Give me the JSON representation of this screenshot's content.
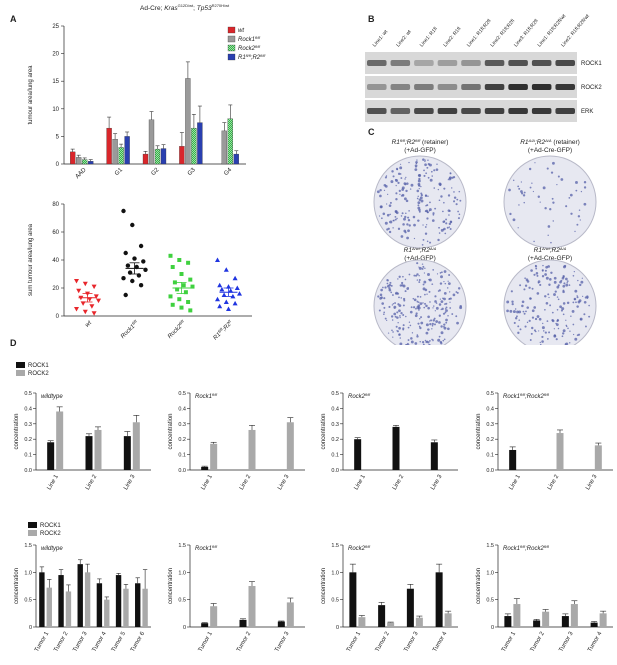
{
  "figure": {
    "panel_letters": [
      "A",
      "B",
      "C",
      "D"
    ],
    "header_title_parts": {
      "prefix": "Ad-Cre; ",
      "kras": "Kras",
      "kras_sup": "G12D/wt",
      "sep": "; ",
      "tp53": "Tp53",
      "tp53_sup": "R270H/wt"
    }
  },
  "chart_data": [
    {
      "id": "A-top",
      "type": "bar",
      "title": "",
      "ylabel": "tumour area/lung area",
      "xlabel": "",
      "ylim": [
        0,
        25
      ],
      "yticks": [
        0,
        5,
        10,
        15,
        20,
        25
      ],
      "categories": [
        "AAD",
        "G1",
        "G2",
        "G3",
        "G4"
      ],
      "legend_position": "top-right",
      "series": [
        {
          "name": "wt",
          "color": "#d9262b",
          "values": [
            2.2,
            6.5,
            1.8,
            3.2,
            0
          ],
          "errors": [
            0.5,
            2.0,
            0.5,
            2.5,
            0
          ]
        },
        {
          "name": "Rock1fl/fl",
          "color": "#9a9a9a",
          "values": [
            1.2,
            4.5,
            8.0,
            15.5,
            6.0
          ],
          "errors": [
            0.4,
            1.0,
            1.5,
            3.0,
            1.5
          ]
        },
        {
          "name": "Rock2fl/fl",
          "color": "#33b34a",
          "values": [
            0.8,
            3.0,
            2.7,
            6.5,
            8.2
          ],
          "errors": [
            0.3,
            0.6,
            0.6,
            2.5,
            2.5
          ]
        },
        {
          "name": "R1fl/fl;R2fl/fl",
          "color": "#2a3fb0",
          "values": [
            0.5,
            5.0,
            2.8,
            7.5,
            1.8
          ],
          "errors": [
            0.3,
            0.8,
            0.7,
            3.0,
            0.6
          ]
        }
      ],
      "legend_labels": [
        {
          "main": "wt",
          "sup": ""
        },
        {
          "main": "Rock1",
          "sup": "fl/fl"
        },
        {
          "main": "Rock2",
          "sup": "fl/fl"
        },
        {
          "main": "R1",
          "sup": "fl/fl",
          "main2": ";R2",
          "sup2": "fl/fl"
        }
      ]
    },
    {
      "id": "A-bottom",
      "type": "scatter",
      "ylabel": "sum tumour area/lung area",
      "ylim": [
        0,
        80
      ],
      "yticks": [
        0,
        20,
        40,
        60,
        80
      ],
      "categories": [
        "wt",
        "Rock1fl/fl",
        "Rock2fl/fl",
        "R1fl/fl;R2fl/fl"
      ],
      "x_labels": [
        {
          "main": "wt",
          "sup": ""
        },
        {
          "main": "Rock1",
          "sup": "fl/fl"
        },
        {
          "main": "Rock2",
          "sup": "fl/fl"
        },
        {
          "main": "R1",
          "sup": "fl/fl",
          "main2": ";R2",
          "sup2": "fl"
        }
      ],
      "series": [
        {
          "name": "wt",
          "color": "#e8262b",
          "marker": "triangle-down",
          "mean": 13,
          "sem": 3,
          "values": [
            25,
            23,
            21,
            18,
            16,
            14,
            13,
            12,
            11,
            9,
            7,
            5,
            3,
            2
          ]
        },
        {
          "name": "Rock1fl/fl",
          "color": "#111111",
          "marker": "circle",
          "mean": 34,
          "sem": 4,
          "values": [
            75,
            65,
            50,
            45,
            41,
            39,
            36,
            35,
            33,
            31,
            29,
            27,
            25,
            22,
            15
          ]
        },
        {
          "name": "Rock2fl/fl",
          "color": "#3fd13f",
          "marker": "square",
          "mean": 20,
          "sem": 4,
          "values": [
            43,
            40,
            38,
            35,
            30,
            26,
            24,
            22,
            21,
            19,
            17,
            14,
            12,
            10,
            8,
            6,
            4
          ]
        },
        {
          "name": "R1fl/fl;R2fl/fl",
          "color": "#2035e0",
          "marker": "triangle-up",
          "mean": 17,
          "sem": 3,
          "values": [
            40,
            33,
            27,
            22,
            21,
            20,
            19,
            18,
            16,
            15,
            14,
            12,
            10,
            9,
            7,
            5
          ]
        }
      ]
    },
    {
      "id": "D-row1",
      "type": "bar",
      "ylabel": "concentration",
      "ylim": [
        0,
        0.5
      ],
      "yticks": [
        "0.0",
        "0.1",
        "0.2",
        "0.3",
        "0.4",
        "0.5"
      ],
      "legend": [
        {
          "name": "ROCK1",
          "color": "#111111"
        },
        {
          "name": "ROCK2",
          "color": "#a9a9a9"
        }
      ],
      "panels": [
        {
          "title_main": "wildtype",
          "title_sup": "",
          "categories": [
            "Line 1",
            "Line 2",
            "Line 3"
          ],
          "ROCK1": [
            0.18,
            0.22,
            0.22
          ],
          "ROCK1_err": [
            0.01,
            0.015,
            0.03
          ],
          "ROCK2": [
            0.38,
            0.26,
            0.31
          ],
          "ROCK2_err": [
            0.03,
            0.02,
            0.045
          ]
        },
        {
          "title_main": "Rock1",
          "title_sup": "fl/fl",
          "categories": [
            "Line 1",
            "Line 2",
            "Line 3"
          ],
          "ROCK1": [
            0.02,
            0,
            0
          ],
          "ROCK1_err": [
            0.005,
            0,
            0
          ],
          "ROCK2": [
            0.17,
            0.26,
            0.31
          ],
          "ROCK2_err": [
            0.01,
            0.03,
            0.03
          ]
        },
        {
          "title_main": "Rock2",
          "title_sup": "fl/fl",
          "categories": [
            "Line 1",
            "Line 2",
            "Line 3"
          ],
          "ROCK1": [
            0.2,
            0.28,
            0.18
          ],
          "ROCK1_err": [
            0.01,
            0.01,
            0.015
          ],
          "ROCK2": [
            0,
            0,
            0
          ],
          "ROCK2_err": [
            0,
            0,
            0
          ]
        },
        {
          "title_main": "Rock1",
          "title_sup": "fl/fl",
          "title_main2": ";Rock2",
          "title_sup2": "fl/fl",
          "categories": [
            "Line 1",
            "Line 2",
            "Line 3"
          ],
          "ROCK1": [
            0.13,
            0,
            0
          ],
          "ROCK1_err": [
            0.02,
            0,
            0
          ],
          "ROCK2": [
            0,
            0.24,
            0.16
          ],
          "ROCK2_err": [
            0,
            0.02,
            0.015
          ]
        }
      ]
    },
    {
      "id": "D-row2",
      "type": "bar",
      "ylabel": "concentration",
      "ylim": [
        0,
        1.5
      ],
      "yticks": [
        "0",
        "0.5",
        "1.0",
        "1.5"
      ],
      "legend": [
        {
          "name": "ROCK1",
          "color": "#111111"
        },
        {
          "name": "ROCK2",
          "color": "#a9a9a9"
        }
      ],
      "panels": [
        {
          "title_main": "wildtype",
          "title_sup": "",
          "categories": [
            "Tumor 1",
            "Tumor 2",
            "Tumor 3",
            "Tumor 4",
            "Tumor 5",
            "Tumor 6"
          ],
          "ROCK1": [
            1.0,
            0.95,
            1.15,
            0.8,
            0.95,
            0.8
          ],
          "ROCK1_err": [
            0.1,
            0.1,
            0.08,
            0.08,
            0.03,
            0.1
          ],
          "ROCK2": [
            0.72,
            0.65,
            1.0,
            0.5,
            0.7,
            0.7
          ],
          "ROCK2_err": [
            0.15,
            0.12,
            0.15,
            0.05,
            0.08,
            0.35
          ]
        },
        {
          "title_main": "Rock1",
          "title_sup": "fl/fl",
          "categories": [
            "Tumor 1",
            "Tumor 2",
            "Tumor 3"
          ],
          "ROCK1": [
            0.07,
            0.13,
            0.1
          ],
          "ROCK1_err": [
            0.01,
            0.02,
            0.01
          ],
          "ROCK2": [
            0.38,
            0.75,
            0.45
          ],
          "ROCK2_err": [
            0.05,
            0.08,
            0.08
          ]
        },
        {
          "title_main": "Rock2",
          "title_sup": "fl/fl",
          "categories": [
            "Tumor 1",
            "Tumor 2",
            "Tumor 3",
            "Tumor 4"
          ],
          "ROCK1": [
            1.0,
            0.4,
            0.7,
            1.0
          ],
          "ROCK1_err": [
            0.15,
            0.05,
            0.08,
            0.15
          ],
          "ROCK2": [
            0.18,
            0.08,
            0.17,
            0.25
          ],
          "ROCK2_err": [
            0.03,
            0.01,
            0.03,
            0.04
          ]
        },
        {
          "title_main": "Rock1",
          "title_sup": "fl/fl",
          "title_main2": ";Rock2",
          "title_sup2": "fl/fl",
          "categories": [
            "Tumor 1",
            "Tumor 2",
            "Tumor 3",
            "Tumor 4"
          ],
          "ROCK1": [
            0.2,
            0.12,
            0.2,
            0.08
          ],
          "ROCK1_err": [
            0.04,
            0.02,
            0.04,
            0.02
          ],
          "ROCK2": [
            0.42,
            0.28,
            0.42,
            0.25
          ],
          "ROCK2_err": [
            0.1,
            0.04,
            0.06,
            0.04
          ]
        }
      ]
    }
  ],
  "western_blot": {
    "lane_labels": [
      "Line1: wt",
      "Line2: wt",
      "Line1: R1fl",
      "Line2: R1fl",
      "Line1: R1fl;R2fl",
      "Line2: R1fl;R2fl",
      "Line3: R1fl;R2fl",
      "Line1: R1fl;R2fl/wt",
      "Line2: R1fl;R2fl/wt"
    ],
    "bands": [
      "ROCK1",
      "ROCK2",
      "ERK"
    ],
    "band_intensity": {
      "ROCK1": [
        0.55,
        0.45,
        0.2,
        0.25,
        0.3,
        0.65,
        0.7,
        0.7,
        0.75
      ],
      "ROCK2": [
        0.3,
        0.4,
        0.45,
        0.35,
        0.5,
        0.8,
        0.9,
        0.9,
        0.85
      ],
      "ERK": [
        0.7,
        0.6,
        0.75,
        0.8,
        0.75,
        0.8,
        0.85,
        0.85,
        0.8
      ]
    }
  },
  "colony_assay": {
    "plates": [
      {
        "label_line1_main": "R1",
        "label_line1_sup": "fl/fl",
        "label_line1_main2": ";R2",
        "label_line1_sup2": "fl/fl",
        "label_line1_suffix": " (retainer)",
        "label_line2": "(+Ad-GFP)",
        "density": 0.8
      },
      {
        "label_line1_main": "R1",
        "label_line1_sup": "Δ/Δ",
        "label_line1_main2": ";R2",
        "label_line1_sup2": "Δ/Δ",
        "label_line1_suffix": " (retainer)",
        "label_line2": "(+Ad-Cre-GFP)",
        "density": 0.2
      },
      {
        "label_line1_main": "R1",
        "label_line1_sup": "Δ/wt",
        "label_line1_main2": ";R2",
        "label_line1_sup2": "Δ/Δ",
        "label_line1_suffix": "",
        "label_line2": "(+Ad-GFP)",
        "density": 0.95
      },
      {
        "label_line1_main": "R1",
        "label_line1_sup": "Δ/wt",
        "label_line1_main2": ";R2",
        "label_line1_sup2": "Δ/Δ",
        "label_line1_suffix": "",
        "label_line2": "(+Ad-Cre-GFP)",
        "density": 0.7
      }
    ]
  }
}
